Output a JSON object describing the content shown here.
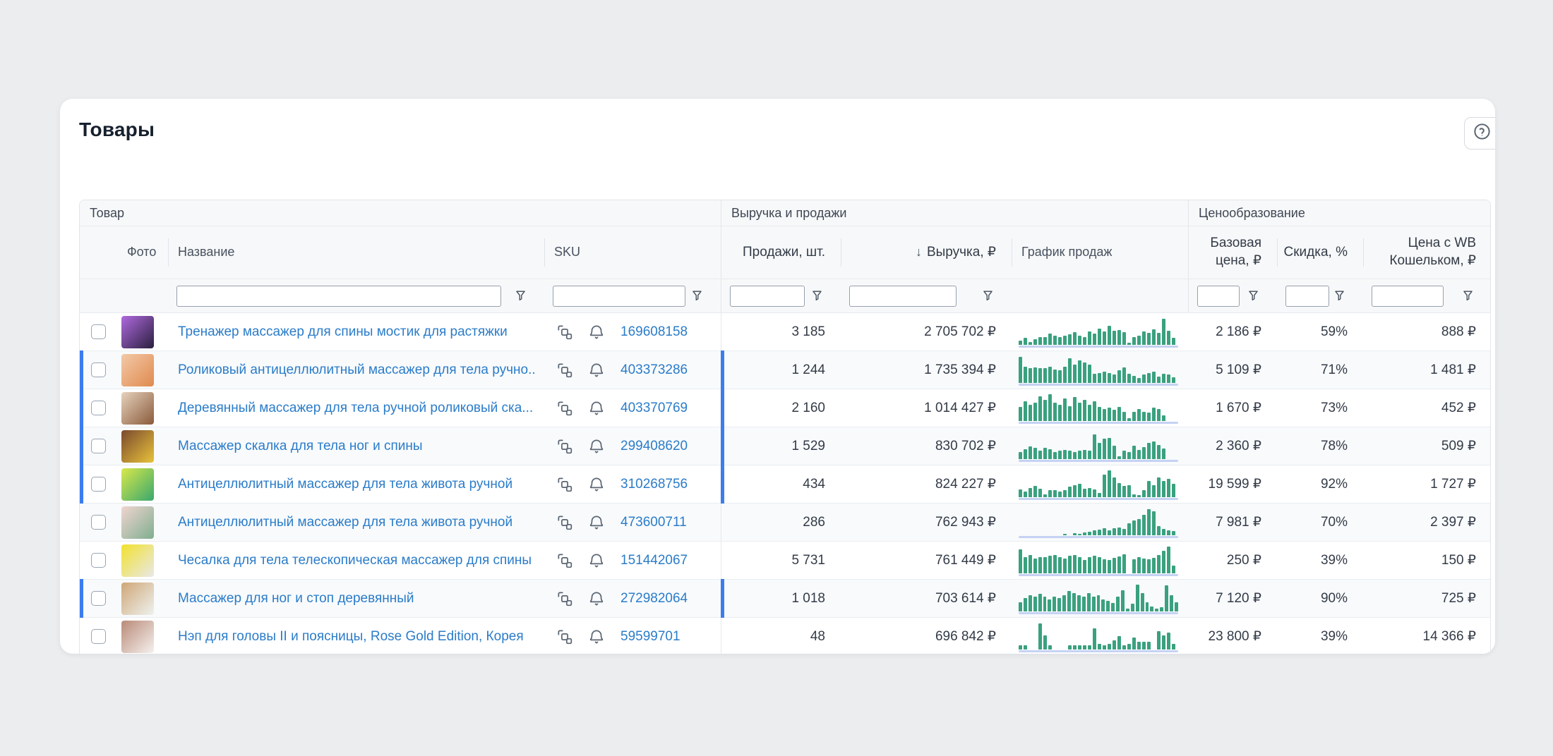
{
  "page": {
    "title": "Товары"
  },
  "help_button": {
    "icon": "question-circle"
  },
  "colors": {
    "link_blue": "#2b7cc9",
    "selected_row_bar": "#3b7df0",
    "spark_bar_green": "#3aa17e",
    "spark_baseline_blue": "#c5d2f3",
    "header_bg": "#f7f8f9"
  },
  "table": {
    "groups": {
      "product": "Товар",
      "revenue_sales": "Выручка и продажи",
      "pricing": "Ценообразование"
    },
    "columns": {
      "photo": "Фото",
      "name": "Название",
      "sku": "SKU",
      "sales": "Продажи, шт.",
      "sort_icon": "↓",
      "revenue": "Выручка, ₽",
      "chart": "График продаж",
      "base_price_1": "Базовая",
      "base_price_2": "цена, ₽",
      "discount": "Скидка, %",
      "wb_price_1": "Цена с WB",
      "wb_price_2": "Кошельком, ₽"
    },
    "rows": [
      {
        "name": "Тренажер массажер для спины мостик для растяжки",
        "sku": "169608158",
        "sales": "3 185",
        "revenue": "2 705 702 ₽",
        "base_price": "2 186 ₽",
        "discount": "59%",
        "wb_price": "888 ₽",
        "selected": false,
        "photo": [
          "#b06ae0",
          "#2a1f3d"
        ],
        "spark": [
          15,
          25,
          10,
          20,
          28,
          28,
          40,
          33,
          28,
          32,
          38,
          45,
          33,
          28,
          50,
          42,
          60,
          48,
          70,
          52,
          55,
          46,
          6,
          28,
          33,
          50,
          43,
          56,
          43,
          95,
          52,
          24
        ]
      },
      {
        "name": "Роликовый антицеллюлитный массажер для тела ручно...",
        "sku": "403373286",
        "sales": "1 244",
        "revenue": "1 735 394 ₽",
        "base_price": "5 109 ₽",
        "discount": "71%",
        "wb_price": "1 481 ₽",
        "selected": true,
        "photo": [
          "#f3c9a8",
          "#e08a4e"
        ],
        "spark": [
          95,
          60,
          55,
          56,
          54,
          55,
          60,
          50,
          45,
          60,
          90,
          66,
          84,
          76,
          66,
          34,
          36,
          40,
          36,
          30,
          46,
          56,
          32,
          26,
          16,
          30,
          36,
          40,
          22,
          34,
          30,
          20
        ]
      },
      {
        "name": "Деревянный массажер для тела ручной роликовый ска...",
        "sku": "403370769",
        "sales": "2 160",
        "revenue": "1 014 427 ₽",
        "base_price": "1 670 ₽",
        "discount": "73%",
        "wb_price": "452 ₽",
        "selected": true,
        "photo": [
          "#e6d2bd",
          "#8a5a3a"
        ],
        "spark": [
          52,
          72,
          58,
          68,
          92,
          78,
          100,
          68,
          58,
          82,
          54,
          88,
          68,
          78,
          58,
          72,
          52,
          44,
          48,
          40,
          52,
          34,
          8,
          34,
          44,
          34,
          30,
          48,
          44,
          20
        ]
      },
      {
        "name": "Массажер скалка для тела ног и спины",
        "sku": "299408620",
        "sales": "1 529",
        "revenue": "830 702 ₽",
        "base_price": "2 360 ₽",
        "discount": "78%",
        "wb_price": "509 ₽",
        "selected": true,
        "photo": [
          "#7a4a2e",
          "#e8c23a"
        ],
        "spark": [
          25,
          35,
          45,
          40,
          30,
          40,
          35,
          25,
          30,
          34,
          30,
          25,
          30,
          34,
          30,
          92,
          58,
          74,
          78,
          48,
          8,
          30,
          25,
          48,
          34,
          44,
          58,
          64,
          52,
          38
        ]
      },
      {
        "name": "Антицеллюлитный массажер для тела живота ручной",
        "sku": "310268756",
        "sales": "434",
        "revenue": "824 227 ₽",
        "base_price": "19 599 ₽",
        "discount": "92%",
        "wb_price": "1 727 ₽",
        "selected": true,
        "photo": [
          "#d8e84a",
          "#3aa86e"
        ],
        "spark": [
          28,
          20,
          34,
          40,
          30,
          10,
          24,
          24,
          20,
          24,
          38,
          44,
          48,
          30,
          34,
          28,
          14,
          84,
          100,
          72,
          52,
          40,
          44,
          10,
          6,
          24,
          58,
          44,
          72,
          58,
          68,
          48
        ]
      },
      {
        "name": "Антицеллюлитный массажер для тела живота ручной",
        "sku": "473600711",
        "sales": "286",
        "revenue": "762 943 ₽",
        "base_price": "7 981 ₽",
        "discount": "70%",
        "wb_price": "2 397 ₽",
        "selected": false,
        "photo": [
          "#f0d5cf",
          "#7fae8f"
        ],
        "spark": [
          0,
          0,
          0,
          0,
          0,
          0,
          0,
          0,
          0,
          4,
          0,
          6,
          3,
          8,
          12,
          16,
          20,
          26,
          18,
          24,
          28,
          22,
          44,
          54,
          60,
          74,
          95,
          88,
          34,
          22,
          18,
          14
        ]
      },
      {
        "name": "Чесалка для тела телескопическая массажер для спины",
        "sku": "151442067",
        "sales": "5 731",
        "revenue": "761 449 ₽",
        "base_price": "250 ₽",
        "discount": "39%",
        "wb_price": "150 ₽",
        "selected": false,
        "photo": [
          "#f2e12e",
          "#e8e8e8"
        ],
        "spark": [
          88,
          58,
          68,
          54,
          58,
          60,
          64,
          68,
          58,
          54,
          64,
          68,
          58,
          50,
          58,
          64,
          58,
          52,
          50,
          56,
          62,
          70,
          0,
          52,
          58,
          54,
          52,
          56,
          66,
          84,
          100,
          28
        ]
      },
      {
        "name": "Массажер для ног и стоп деревянный",
        "sku": "272982064",
        "sales": "1 018",
        "revenue": "703 614 ₽",
        "base_price": "7 120 ₽",
        "discount": "90%",
        "wb_price": "725 ₽",
        "selected": true,
        "photo": [
          "#cfa678",
          "#eef2ee"
        ],
        "spark": [
          34,
          48,
          58,
          54,
          64,
          54,
          44,
          54,
          50,
          58,
          74,
          68,
          58,
          54,
          68,
          54,
          58,
          44,
          38,
          30,
          54,
          78,
          10,
          28,
          100,
          66,
          34,
          18,
          8,
          14,
          95,
          60,
          34
        ]
      },
      {
        "name": "Нэп для головы II и поясницы, Rose Gold Edition, Корея",
        "sku": "59599701",
        "sales": "48",
        "revenue": "696 842 ₽",
        "base_price": "23 800 ₽",
        "discount": "39%",
        "wb_price": "14 366 ₽",
        "selected": false,
        "photo": [
          "#b98a78",
          "#f5f1ee"
        ],
        "spark": [
          14,
          14,
          0,
          0,
          95,
          52,
          14,
          0,
          0,
          0,
          14,
          14,
          14,
          14,
          14,
          78,
          20,
          14,
          20,
          34,
          48,
          14,
          20,
          44,
          28,
          28,
          28,
          0,
          66,
          52,
          62,
          20
        ]
      }
    ]
  }
}
